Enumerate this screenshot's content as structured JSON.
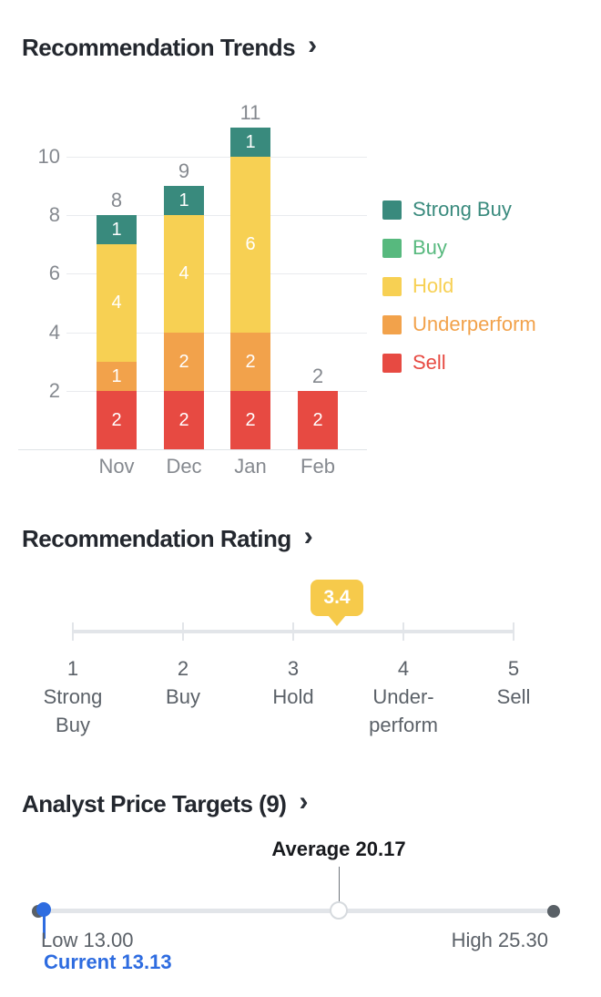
{
  "icons": {
    "chevron_right": "›"
  },
  "colors": {
    "strong_buy": "#398a7d",
    "buy": "#57b97e",
    "hold": "#f7d053",
    "underperform": "#f2a24b",
    "sell": "#e74a42",
    "badge": "#f6ca4b",
    "accent_blue": "#2e6ce0",
    "title_text": "#23272e",
    "muted_text": "#85898f",
    "label_text": "#5b6168",
    "track": "#e2e5e9"
  },
  "sections": {
    "trends": {
      "title": "Recommendation Trends"
    },
    "rating": {
      "title": "Recommendation Rating"
    },
    "targets": {
      "title": "Analyst Price Targets (9)"
    }
  },
  "chart_data": [
    {
      "type": "bar",
      "stacked": true,
      "title": "Recommendation Trends",
      "categories": [
        "Nov",
        "Dec",
        "Jan",
        "Feb"
      ],
      "series": [
        {
          "name": "Strong Buy",
          "color": "#398a7d",
          "values": [
            1,
            1,
            1,
            0
          ]
        },
        {
          "name": "Buy",
          "color": "#57b97e",
          "values": [
            0,
            0,
            0,
            0
          ]
        },
        {
          "name": "Hold",
          "color": "#f7d053",
          "values": [
            4,
            4,
            6,
            0
          ]
        },
        {
          "name": "Underperform",
          "color": "#f2a24b",
          "values": [
            1,
            2,
            2,
            0
          ]
        },
        {
          "name": "Sell",
          "color": "#e74a42",
          "values": [
            2,
            2,
            2,
            2
          ]
        }
      ],
      "totals": [
        8,
        9,
        11,
        2
      ],
      "yticks": [
        2,
        4,
        6,
        8,
        10
      ],
      "ylim": [
        0,
        12
      ],
      "grid": true,
      "legend_position": "right"
    },
    {
      "type": "rating-scale",
      "title": "Recommendation Rating",
      "value": 3.4,
      "min": 1,
      "max": 5,
      "tick_labels": [
        {
          "number": "1",
          "lines": [
            "Strong",
            "Buy"
          ]
        },
        {
          "number": "2",
          "lines": [
            "Buy"
          ]
        },
        {
          "number": "3",
          "lines": [
            "Hold"
          ]
        },
        {
          "number": "4",
          "lines": [
            "Under-",
            "perform"
          ]
        },
        {
          "number": "5",
          "lines": [
            "Sell"
          ]
        }
      ]
    },
    {
      "type": "range-slider",
      "title": "Analyst Price Targets (9)",
      "analyst_count": 9,
      "min_value": 13.0,
      "max_value": 25.3,
      "average_value": 20.17,
      "current_value": 13.13,
      "labels": {
        "low": "Low 13.00",
        "high": "High 25.30",
        "average": "Average 20.17",
        "current": "Current 13.13"
      }
    }
  ]
}
